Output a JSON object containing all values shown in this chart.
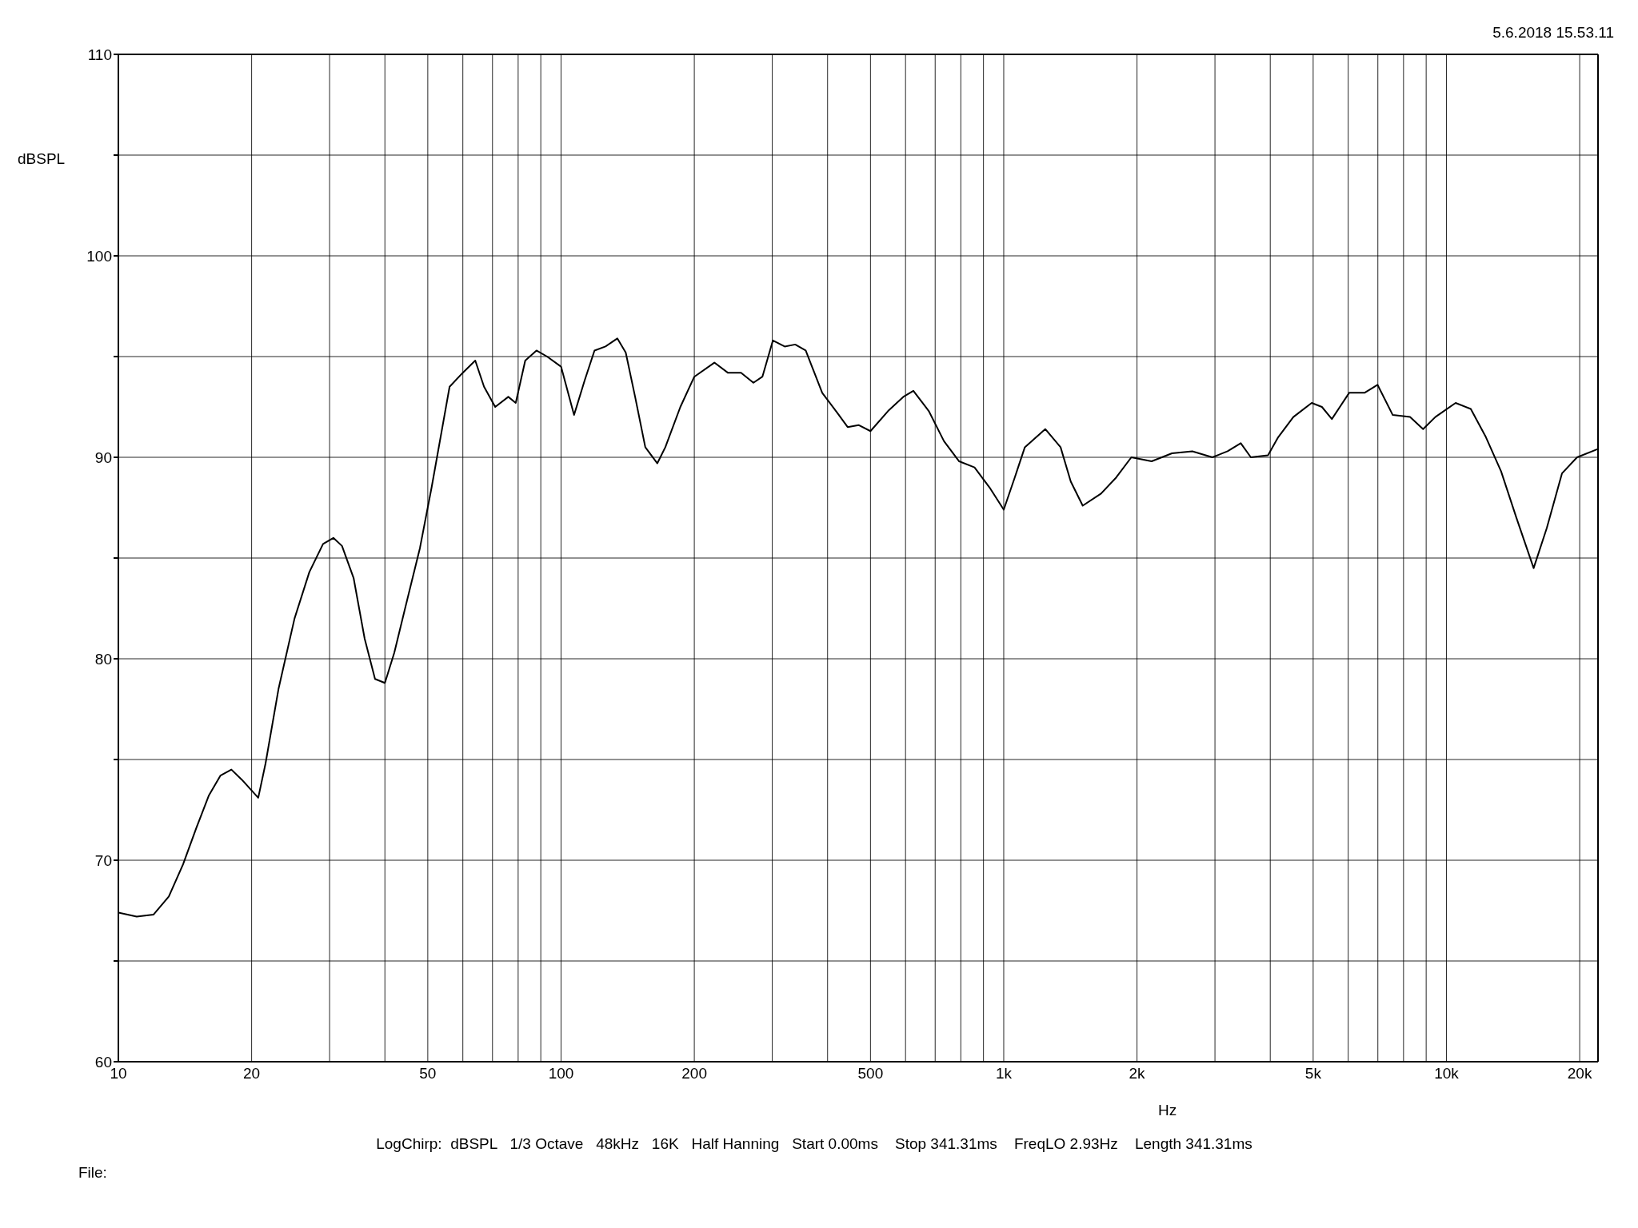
{
  "chart_data": {
    "type": "line",
    "xlabel": "Hz",
    "ylabel": "dBSPL",
    "annotations": [
      "5.6.2018 15.53.11",
      "LogChirp:  dBSPL   1/3 Octave   48kHz   16K   Half Hanning   Start 0.00ms    Stop 341.31ms    FreqLO 2.93Hz    Length 341.31ms",
      "File:"
    ],
    "log": "x",
    "grid": true,
    "marker": "none",
    "line_style": "solid",
    "xlim": [
      10,
      22000
    ],
    "ylim": [
      60,
      110
    ],
    "xticks": [
      10,
      20,
      {
        "value": 30,
        "label": null
      },
      {
        "value": 40,
        "label": null
      },
      50,
      {
        "value": 60,
        "label": null
      },
      {
        "value": 70,
        "label": null
      },
      {
        "value": 80,
        "label": null
      },
      {
        "value": 90,
        "label": null
      },
      100,
      200,
      {
        "value": 300,
        "label": null
      },
      {
        "value": 400,
        "label": null
      },
      500,
      {
        "value": 600,
        "label": null
      },
      {
        "value": 700,
        "label": null
      },
      {
        "value": 800,
        "label": null
      },
      {
        "value": 900,
        "label": null
      },
      {
        "value": 1000,
        "label": "1k"
      },
      {
        "value": 2000,
        "label": "2k"
      },
      {
        "value": 3000,
        "label": null
      },
      {
        "value": 4000,
        "label": null
      },
      {
        "value": 5000,
        "label": "5k"
      },
      {
        "value": 6000,
        "label": null
      },
      {
        "value": 7000,
        "label": null
      },
      {
        "value": 8000,
        "label": null
      },
      {
        "value": 9000,
        "label": null
      },
      {
        "value": 10000,
        "label": "10k"
      },
      {
        "value": 20000,
        "label": "20k"
      }
    ],
    "yticks": [
      60,
      {
        "value": 65,
        "label": null
      },
      70,
      {
        "value": 75,
        "label": null
      },
      80,
      {
        "value": 85,
        "label": null
      },
      90,
      {
        "value": 95,
        "label": null
      },
      100,
      {
        "value": 105,
        "label": null
      },
      110
    ],
    "series": [
      {
        "color": "#000000",
        "x": [
          10,
          11,
          12,
          13,
          14,
          15,
          16,
          17,
          18,
          19,
          20.7,
          21.5,
          23,
          25,
          27,
          29,
          30.6,
          32,
          34,
          36,
          38,
          40,
          42,
          45,
          48,
          51,
          56,
          60,
          64,
          67,
          71,
          76,
          79,
          83,
          88,
          93,
          100,
          107,
          113,
          119,
          126,
          134,
          140,
          147,
          155,
          165,
          172,
          186,
          200,
          222,
          238,
          255,
          272,
          285,
          301,
          320,
          338,
          357,
          389,
          421,
          444,
          470,
          500,
          548,
          593,
          625,
          677,
          733,
          793,
          859,
          929,
          1000,
          1059,
          1116,
          1241,
          1344,
          1417,
          1508,
          1659,
          1795,
          1942,
          2158,
          2399,
          2667,
          2960,
          3204,
          3431,
          3616,
          3953,
          4169,
          4510,
          4962,
          5233,
          5511,
          6030,
          6530,
          6988,
          7564,
          8275,
          8858,
          9440,
          10490,
          11350,
          12280,
          13290,
          14390,
          15740,
          16860,
          18240,
          19730,
          21930
        ],
        "values": [
          67.4,
          67.2,
          67.3,
          68.2,
          69.8,
          71.6,
          73.2,
          74.2,
          74.5,
          74.0,
          73.1,
          74.8,
          78.5,
          82.0,
          84.3,
          85.7,
          86.0,
          85.6,
          84.0,
          81.0,
          79.0,
          78.8,
          80.3,
          83.0,
          85.5,
          88.5,
          93.5,
          94.2,
          94.8,
          93.5,
          92.5,
          93.0,
          92.7,
          94.8,
          95.3,
          95.0,
          94.5,
          92.1,
          93.8,
          95.3,
          95.5,
          95.9,
          95.2,
          93.0,
          90.5,
          89.7,
          90.5,
          92.5,
          94.0,
          94.7,
          94.2,
          94.2,
          93.7,
          94.0,
          95.8,
          95.5,
          95.6,
          95.3,
          93.2,
          92.2,
          91.5,
          91.6,
          91.3,
          92.3,
          93.0,
          93.3,
          92.3,
          90.8,
          89.8,
          89.5,
          88.5,
          87.4,
          89.0,
          90.5,
          91.4,
          90.5,
          88.8,
          87.6,
          88.2,
          89.0,
          90.0,
          89.8,
          90.2,
          90.3,
          90.0,
          90.3,
          90.7,
          90.0,
          90.1,
          91.0,
          92.0,
          92.7,
          92.5,
          91.9,
          93.2,
          93.2,
          93.6,
          92.1,
          92.0,
          91.4,
          92.0,
          92.7,
          92.4,
          91.0,
          89.3,
          87.0,
          84.5,
          86.5,
          89.2,
          90.0,
          90.4
        ]
      }
    ]
  }
}
